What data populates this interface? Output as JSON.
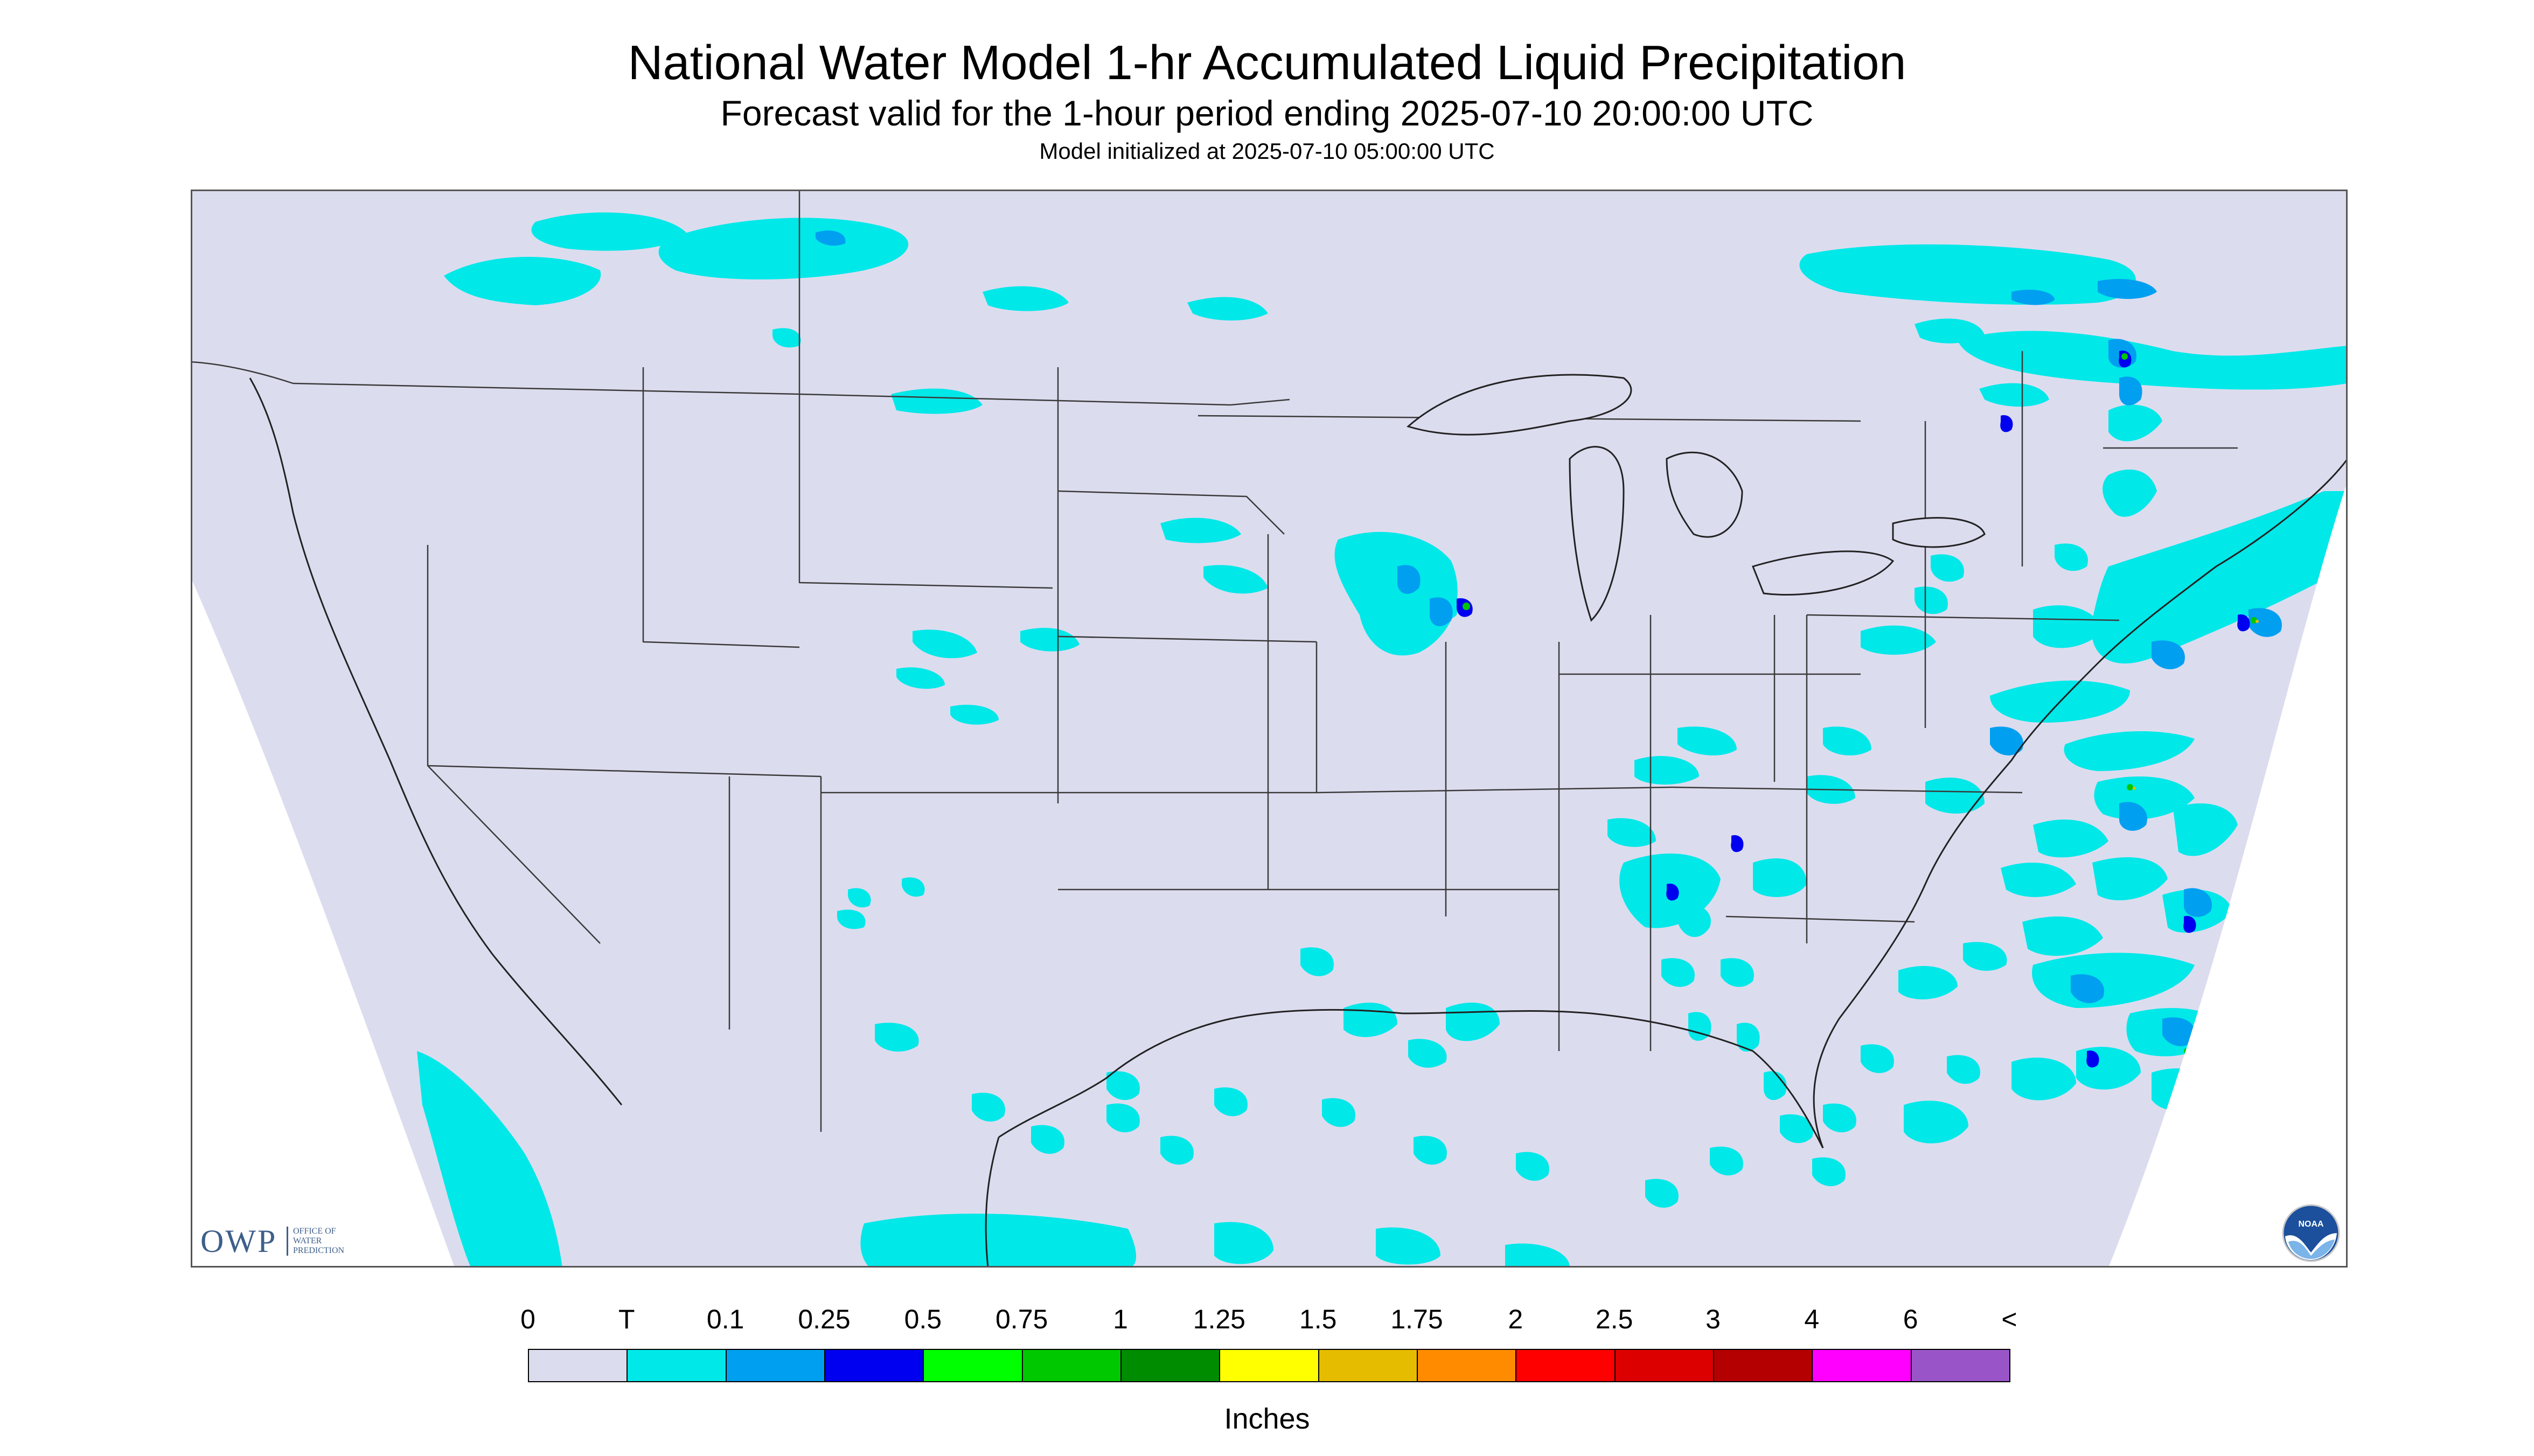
{
  "title": "National Water Model 1-hr Accumulated Liquid Precipitation",
  "subtitle": "Forecast valid for the 1-hour period ending 2025-07-10 20:00:00 UTC",
  "init_line": "Model initialized at 2025-07-10 05:00:00 UTC",
  "owp_logo": {
    "abbrev": "OWP",
    "line1": "OFFICE OF",
    "line2": "WATER",
    "line3": "PREDICTION"
  },
  "noaa_logo": {
    "text": "NOAA",
    "icon": "noaa-emblem-icon"
  },
  "legend": {
    "labels": [
      "0",
      "T",
      "0.1",
      "0.25",
      "0.5",
      "0.75",
      "1",
      "1.25",
      "1.5",
      "1.75",
      "2",
      "2.5",
      "3",
      "4",
      "6",
      "<"
    ],
    "colors": [
      "#dcdcef",
      "#00e8e8",
      "#009ff0",
      "#0000f0",
      "#00ff00",
      "#00c800",
      "#008c00",
      "#ffff00",
      "#e6bc00",
      "#ff8c00",
      "#ff0000",
      "#dc0000",
      "#b40000",
      "#ff00ff",
      "#9955c8"
    ],
    "units": "Inches"
  },
  "map_colors": {
    "land": "#dcdcef",
    "outside": "#ffffff",
    "trace": "#00e8e8",
    "light": "#009ff0",
    "moderate": "#0000f0",
    "heavy": "#00c800",
    "very_heavy": "#e6bc00",
    "borders": "#3a3a3a"
  }
}
